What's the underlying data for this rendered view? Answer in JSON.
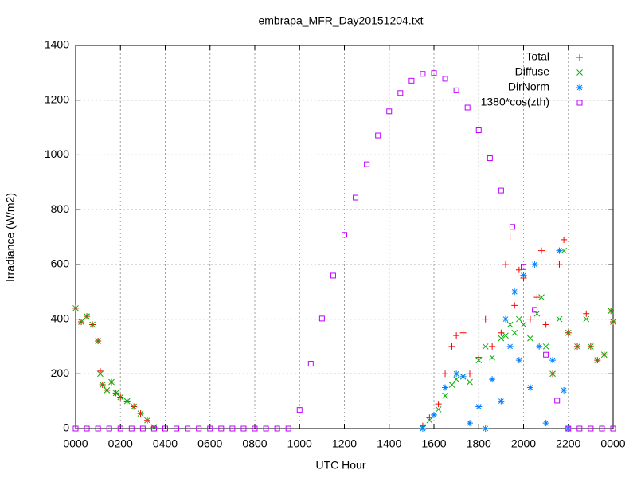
{
  "chart_data": {
    "type": "scatter",
    "title": "embrapa_MFR_Day20151204.txt",
    "xlabel": "UTC Hour",
    "ylabel": "Irradiance (W/m2)",
    "xlim": [
      0,
      24
    ],
    "ylim": [
      0,
      1400
    ],
    "xticks": [
      {
        "value": 0,
        "label": "0000"
      },
      {
        "value": 2,
        "label": "0200"
      },
      {
        "value": 4,
        "label": "0400"
      },
      {
        "value": 6,
        "label": "0600"
      },
      {
        "value": 8,
        "label": "0800"
      },
      {
        "value": 10,
        "label": "1000"
      },
      {
        "value": 12,
        "label": "1200"
      },
      {
        "value": 14,
        "label": "1400"
      },
      {
        "value": 16,
        "label": "1600"
      },
      {
        "value": 18,
        "label": "1800"
      },
      {
        "value": 20,
        "label": "2000"
      },
      {
        "value": 22,
        "label": "2200"
      },
      {
        "value": 24,
        "label": "0000"
      }
    ],
    "yticks": [
      0,
      200,
      400,
      600,
      800,
      1000,
      1200,
      1400
    ],
    "grid": true,
    "legend": "top-right",
    "series": [
      {
        "name": "Total",
        "color": "#ff0000",
        "marker": "plus",
        "x": [
          0,
          0.25,
          0.5,
          0.75,
          1,
          1.1,
          1.2,
          1.4,
          1.6,
          1.8,
          2,
          2.3,
          2.6,
          2.9,
          3.2,
          3.5,
          15.5,
          15.8,
          16.2,
          16.5,
          16.8,
          17,
          17.3,
          17.6,
          18,
          18.3,
          18.6,
          19,
          19.2,
          19.4,
          19.6,
          19.8,
          20,
          20.3,
          20.6,
          20.8,
          21,
          21.3,
          21.6,
          21.8,
          22,
          22.4,
          22.8,
          23,
          23.3,
          23.6,
          23.9,
          24
        ],
        "values": [
          440,
          390,
          410,
          380,
          320,
          210,
          160,
          140,
          170,
          130,
          115,
          100,
          80,
          55,
          30,
          5,
          10,
          40,
          90,
          200,
          300,
          340,
          350,
          200,
          260,
          400,
          300,
          350,
          600,
          700,
          450,
          580,
          550,
          400,
          480,
          650,
          380,
          200,
          600,
          690,
          350,
          300,
          420,
          300,
          250,
          270,
          430,
          390
        ]
      },
      {
        "name": "Diffuse",
        "color": "#00b000",
        "marker": "cross",
        "x": [
          0,
          0.25,
          0.5,
          0.75,
          1,
          1.1,
          1.2,
          1.4,
          1.6,
          1.8,
          2,
          2.3,
          2.6,
          2.9,
          3.2,
          3.5,
          15.5,
          15.8,
          16.2,
          16.5,
          16.8,
          17,
          17.3,
          17.6,
          18,
          18.3,
          18.6,
          19,
          19.2,
          19.4,
          19.6,
          19.8,
          20,
          20.3,
          20.6,
          20.8,
          21,
          21.3,
          21.6,
          21.8,
          22,
          22.4,
          22.8,
          23,
          23.3,
          23.6,
          23.9,
          24
        ],
        "values": [
          440,
          390,
          410,
          380,
          320,
          200,
          160,
          140,
          170,
          130,
          115,
          100,
          80,
          55,
          30,
          5,
          5,
          30,
          70,
          120,
          160,
          180,
          190,
          170,
          250,
          300,
          260,
          330,
          340,
          380,
          350,
          400,
          380,
          330,
          420,
          480,
          300,
          200,
          400,
          650,
          350,
          300,
          400,
          300,
          250,
          270,
          430,
          390
        ]
      },
      {
        "name": "DirNorm",
        "color": "#0080ff",
        "marker": "star",
        "x": [
          15.5,
          16,
          16.5,
          17,
          17.3,
          17.6,
          18,
          18.3,
          18.6,
          19,
          19.2,
          19.4,
          19.6,
          19.8,
          20,
          20.3,
          20.5,
          20.7,
          21,
          21.3,
          21.6,
          21.8,
          22
        ],
        "values": [
          0,
          50,
          150,
          200,
          190,
          20,
          80,
          0,
          180,
          100,
          400,
          300,
          500,
          250,
          560,
          150,
          600,
          300,
          20,
          250,
          650,
          140,
          0
        ]
      },
      {
        "name": "1380*cos(zth)",
        "color": "#c000ff",
        "marker": "square",
        "x": [
          0,
          0.5,
          1,
          1.5,
          2,
          2.5,
          3,
          3.5,
          4,
          4.5,
          5,
          5.5,
          6,
          6.5,
          7,
          7.5,
          8,
          8.5,
          9,
          9.5,
          10,
          10.5,
          11,
          11.5,
          12,
          12.5,
          13,
          13.5,
          14,
          14.5,
          15,
          15.5,
          16,
          16.5,
          17,
          17.5,
          18,
          18.5,
          19,
          19.5,
          20,
          20.5,
          21,
          21.5,
          22,
          22.5,
          23,
          23.5,
          24
        ],
        "values": [
          0,
          0,
          0,
          0,
          0,
          0,
          0,
          0,
          0,
          0,
          0,
          0,
          0,
          0,
          0,
          0,
          0,
          0,
          0,
          0,
          68,
          237,
          402,
          559,
          708,
          844,
          966,
          1071,
          1159,
          1226,
          1271,
          1296,
          1299,
          1278,
          1236,
          1173,
          1090,
          988,
          870,
          737,
          590,
          434,
          270,
          102,
          0,
          0,
          0,
          0,
          0
        ]
      }
    ]
  }
}
